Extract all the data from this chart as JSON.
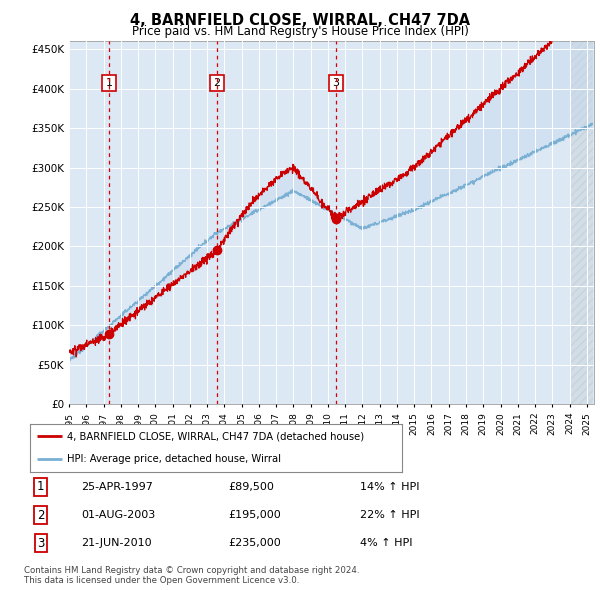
{
  "title": "4, BARNFIELD CLOSE, WIRRAL, CH47 7DA",
  "subtitle": "Price paid vs. HM Land Registry's House Price Index (HPI)",
  "background_color": "#ffffff",
  "plot_bg_color": "#dce9f5",
  "ylim": [
    0,
    460000
  ],
  "yticks": [
    0,
    50000,
    100000,
    150000,
    200000,
    250000,
    300000,
    350000,
    400000,
    450000
  ],
  "ytick_labels": [
    "£0",
    "£50K",
    "£100K",
    "£150K",
    "£200K",
    "£250K",
    "£300K",
    "£350K",
    "£400K",
    "£450K"
  ],
  "sale_dates": [
    "1997-04-25",
    "2003-08-01",
    "2010-06-21"
  ],
  "sale_prices": [
    89500,
    195000,
    235000
  ],
  "sale_labels": [
    "1",
    "2",
    "3"
  ],
  "sale_date_strs": [
    "25-APR-1997",
    "01-AUG-2003",
    "21-JUN-2010"
  ],
  "sale_price_strs": [
    "£89,500",
    "£195,000",
    "£235,000"
  ],
  "sale_hpi_strs": [
    "14% ↑ HPI",
    "22% ↑ HPI",
    "4% ↑ HPI"
  ],
  "line_color_red": "#cc0000",
  "line_color_blue": "#7ab0d4",
  "fill_color": "#c5d9ed",
  "dashed_line_color": "#dd0000",
  "legend_label_red": "4, BARNFIELD CLOSE, WIRRAL, CH47 7DA (detached house)",
  "legend_label_blue": "HPI: Average price, detached house, Wirral",
  "footer_line1": "Contains HM Land Registry data © Crown copyright and database right 2024.",
  "footer_line2": "This data is licensed under the Open Government Licence v3.0."
}
